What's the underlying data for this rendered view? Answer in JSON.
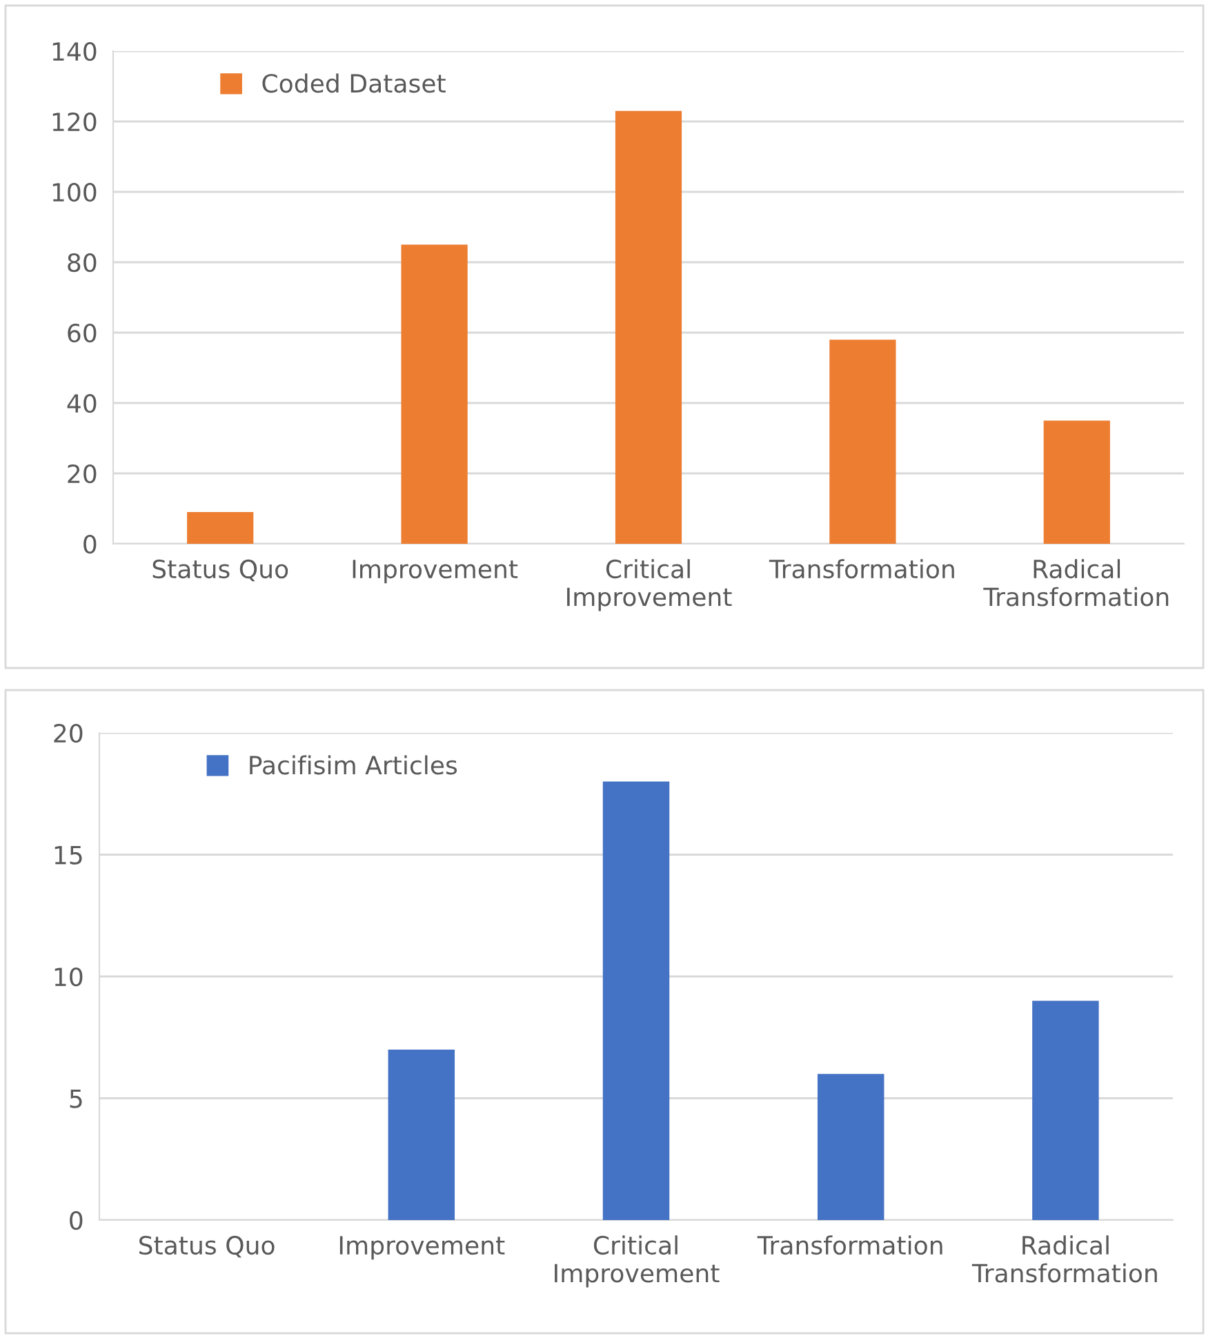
{
  "chart_data": [
    {
      "type": "bar",
      "categories": [
        "Status Quo",
        "Improvement",
        "Critical\nImprovement",
        "Transformation",
        "Radical\nTransformation"
      ],
      "series": [
        {
          "name": "Coded Dataset",
          "color": "#ed7d31",
          "values": [
            9,
            85,
            123,
            58,
            35
          ]
        }
      ],
      "ylim": [
        0,
        140
      ],
      "yticks": [
        0,
        20,
        40,
        60,
        80,
        100,
        120,
        140
      ],
      "grid": "y",
      "legend": "top left"
    },
    {
      "type": "bar",
      "categories": [
        "Status Quo",
        "Improvement",
        "Critical\nImprovement",
        "Transformation",
        "Radical\nTransformation"
      ],
      "series": [
        {
          "name": "Pacifisim Articles",
          "color": "#4472c4",
          "values": [
            0,
            7,
            18,
            6,
            9
          ]
        }
      ],
      "ylim": [
        0,
        20
      ],
      "yticks": [
        0,
        5,
        10,
        15,
        20
      ],
      "grid": "y",
      "legend": "top left"
    }
  ]
}
